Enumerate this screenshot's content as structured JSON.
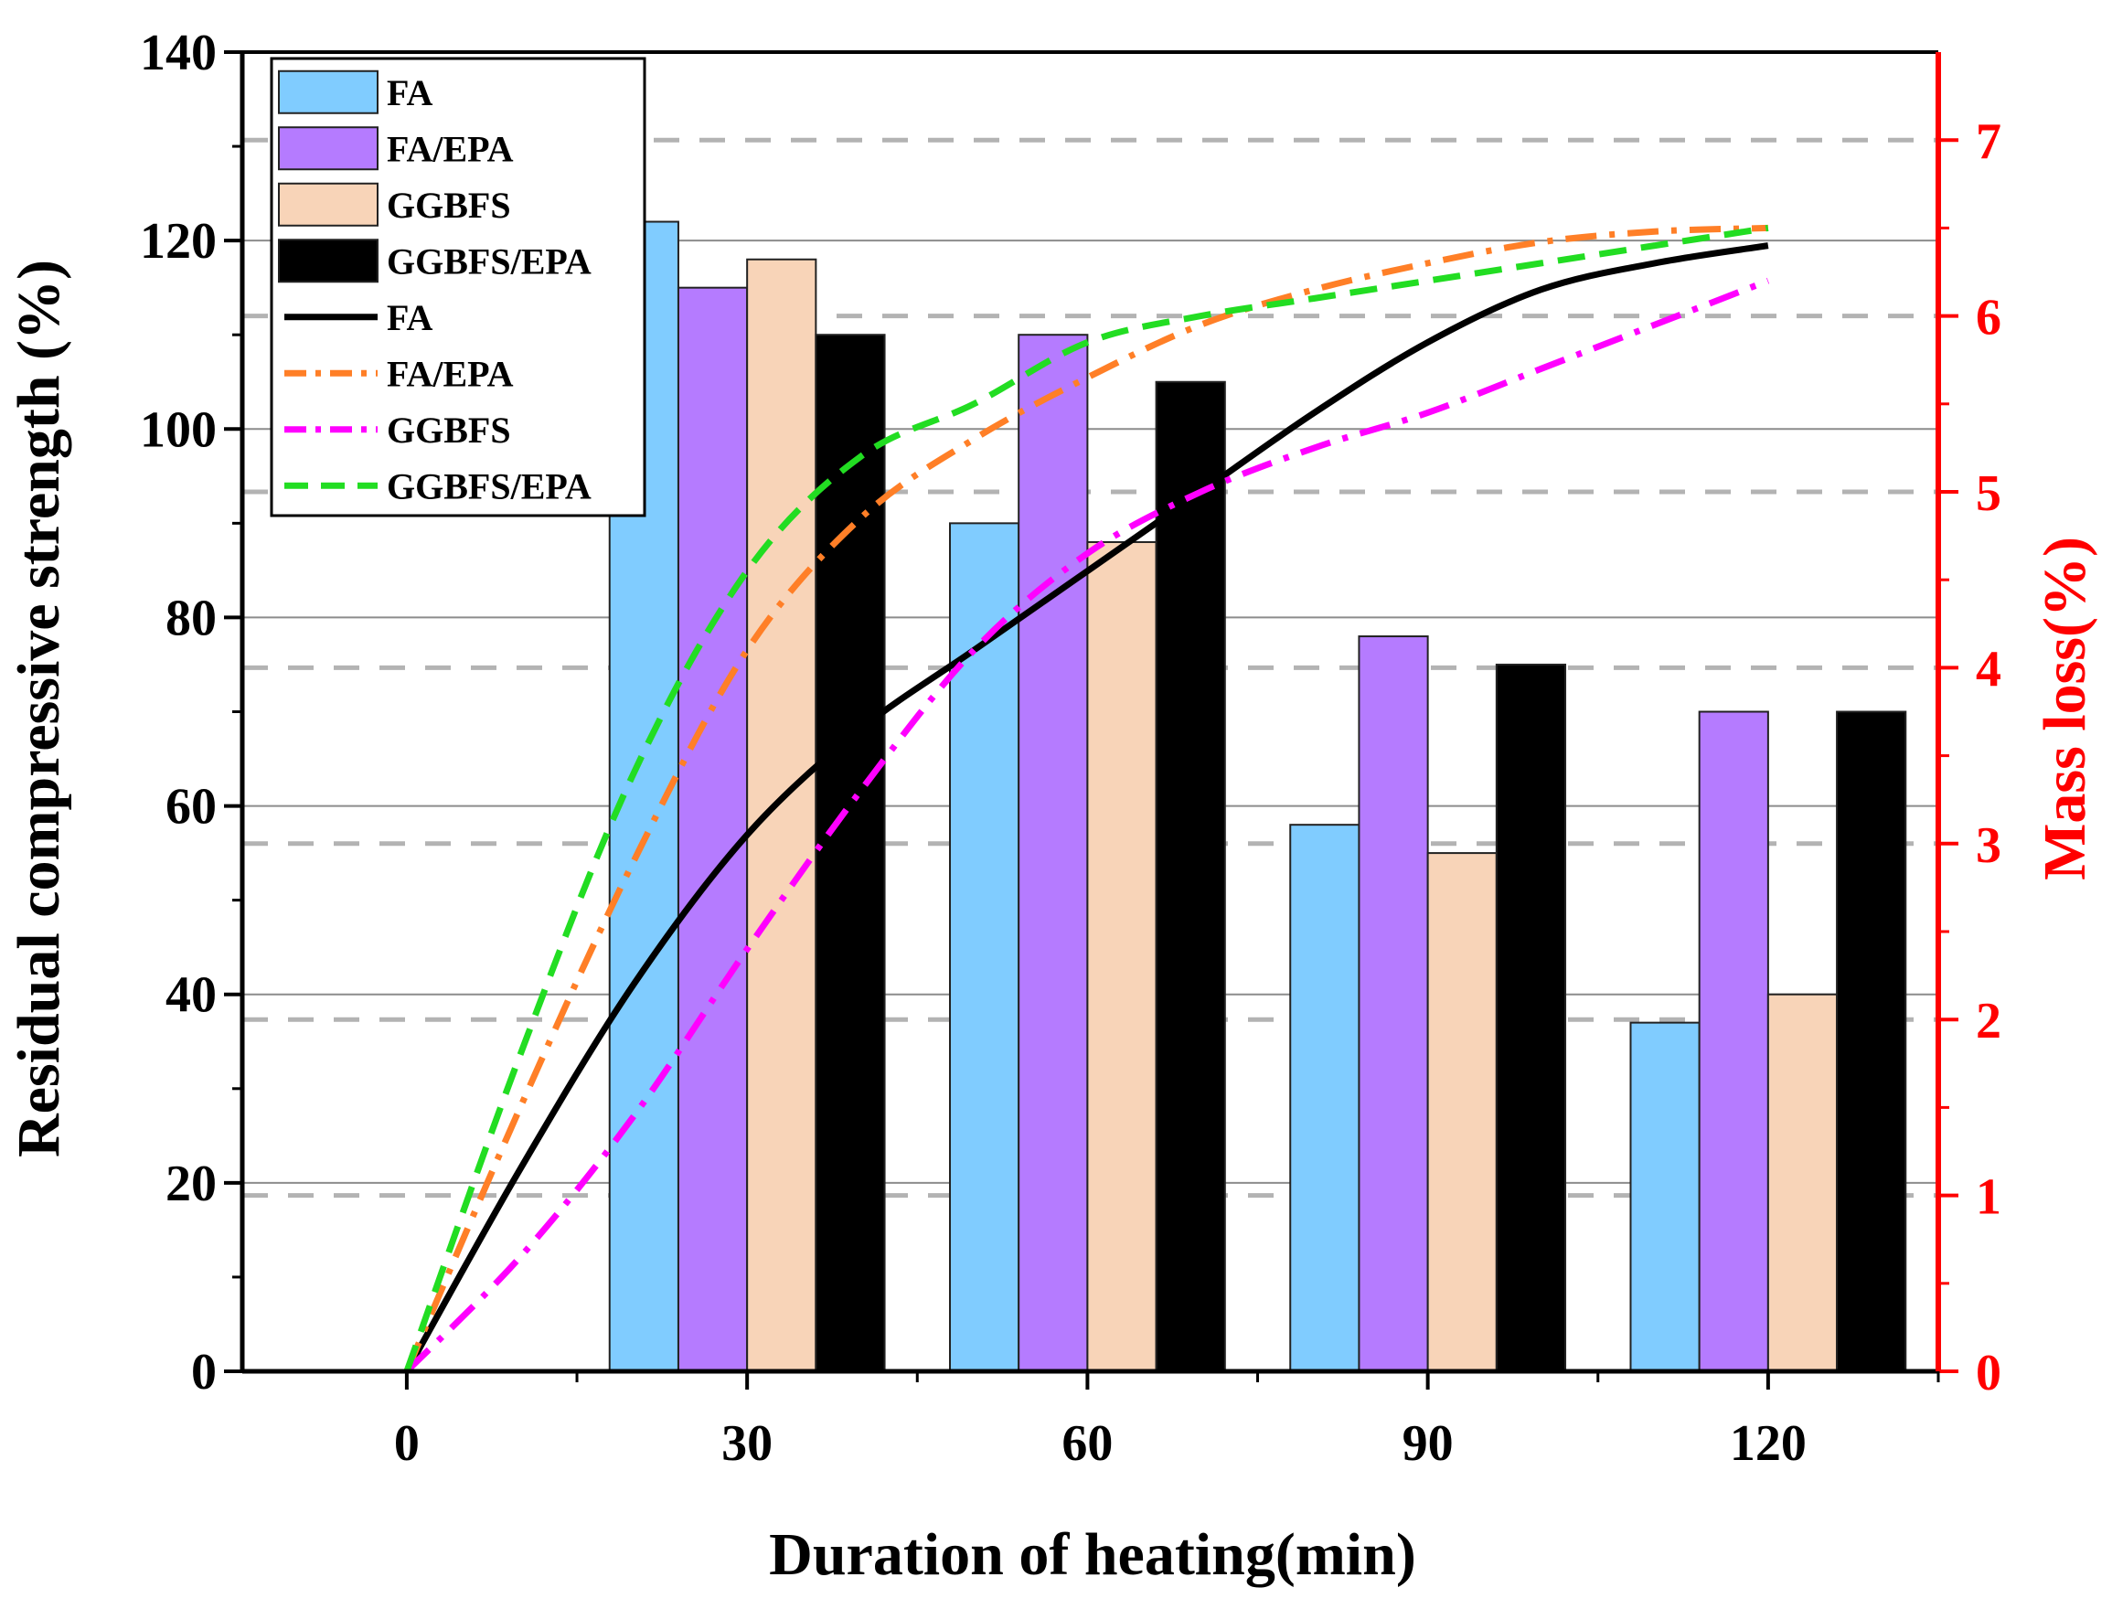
{
  "chart_data": {
    "type": "bar",
    "title": "",
    "xlabel": "Duration of heating(min)",
    "ylabel": "Residual compressive strength (%)",
    "y2label": "Mass loss(%)",
    "categories": [
      "30",
      "60",
      "90",
      "120"
    ],
    "x_ticks": [
      "0",
      "30",
      "60",
      "90",
      "120"
    ],
    "x_tick_values": [
      0,
      30,
      60,
      90,
      120
    ],
    "xlim": [
      -14.5,
      135
    ],
    "ylim": [
      0,
      140
    ],
    "y_ticks": [
      0,
      20,
      40,
      60,
      80,
      100,
      120,
      140
    ],
    "y2lim": [
      0,
      7.5
    ],
    "y2_ticks": [
      0,
      1,
      2,
      3,
      4,
      5,
      6,
      7
    ],
    "grid": true,
    "legend_position": "top-left",
    "bar_series": [
      {
        "name": "FA",
        "color": "#80ccff",
        "values": [
          122,
          90,
          58,
          37
        ]
      },
      {
        "name": "FA/EPA",
        "color": "#b57bff",
        "values": [
          115,
          110,
          78,
          70
        ]
      },
      {
        "name": "GGBFS",
        "color": "#f8d4b8",
        "values": [
          118,
          88,
          55,
          40
        ]
      },
      {
        "name": "GGBFS/EPA",
        "color": "#000000",
        "values": [
          110,
          105,
          75,
          70
        ]
      }
    ],
    "line_series": [
      {
        "name": "FA",
        "color": "#000000",
        "dash": "solid",
        "x": [
          0,
          10,
          20,
          30,
          40,
          50,
          60,
          70,
          80,
          90,
          100,
          110,
          120
        ],
        "y": [
          0,
          1.15,
          2.2,
          3.05,
          3.65,
          4.1,
          4.55,
          5.0,
          5.45,
          5.85,
          6.15,
          6.3,
          6.4
        ]
      },
      {
        "name": "FA/EPA",
        "color": "#ff7f27",
        "dash": "dashdot",
        "x": [
          0,
          10,
          20,
          30,
          40,
          50,
          60,
          70,
          80,
          90,
          100,
          110,
          120
        ],
        "y": [
          0,
          1.5,
          2.9,
          4.1,
          4.85,
          5.3,
          5.65,
          5.95,
          6.15,
          6.3,
          6.42,
          6.48,
          6.5
        ]
      },
      {
        "name": "GGBFS",
        "color": "#ff00ff",
        "dash": "dashdot",
        "x": [
          0,
          10,
          20,
          30,
          40,
          50,
          60,
          70,
          80,
          90,
          100,
          110,
          120
        ],
        "y": [
          0,
          0.65,
          1.45,
          2.4,
          3.3,
          4.1,
          4.65,
          5.0,
          5.25,
          5.45,
          5.7,
          5.95,
          6.2
        ]
      },
      {
        "name": "GGBFS/EPA",
        "color": "#22dd22",
        "dash": "dashed",
        "x": [
          0,
          10,
          20,
          30,
          40,
          50,
          60,
          70,
          80,
          90,
          100,
          110,
          120
        ],
        "y": [
          0,
          1.8,
          3.4,
          4.55,
          5.2,
          5.5,
          5.85,
          6.0,
          6.1,
          6.2,
          6.3,
          6.4,
          6.5
        ]
      }
    ]
  }
}
